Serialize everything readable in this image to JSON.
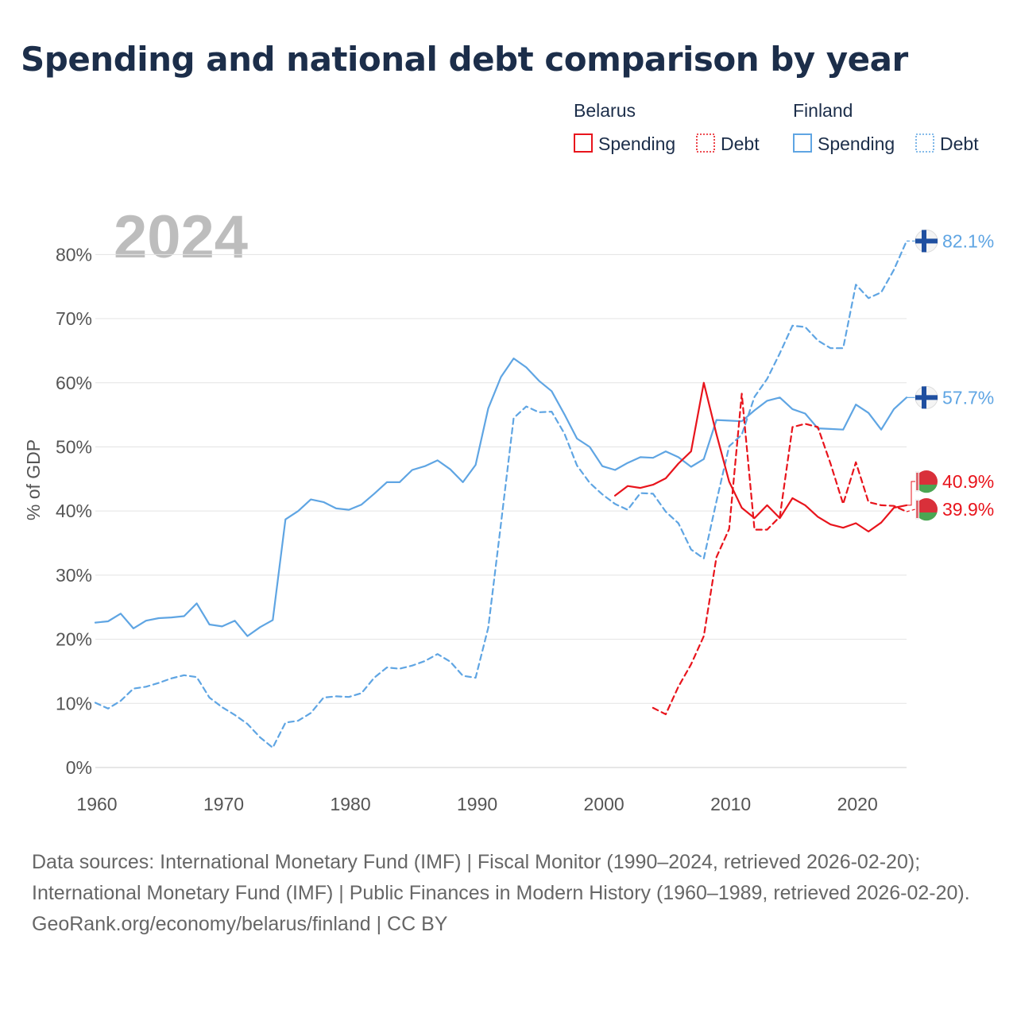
{
  "title": "Spending and national debt comparison by year",
  "chart_data": {
    "type": "line",
    "watermark_year": "2024",
    "ylabel": "% of GDP",
    "ylim": [
      0,
      85
    ],
    "xlim": [
      1960,
      2024
    ],
    "x_ticks": [
      {
        "value": 1960,
        "label": "1960"
      },
      {
        "value": 1970,
        "label": "1970"
      },
      {
        "value": 1980,
        "label": "1980"
      },
      {
        "value": 1990,
        "label": "1990"
      },
      {
        "value": 2000,
        "label": "2000"
      },
      {
        "value": 2010,
        "label": "2010"
      },
      {
        "value": 2020,
        "label": "2020"
      }
    ],
    "y_ticks": [
      {
        "value": 0,
        "label": "0%"
      },
      {
        "value": 10,
        "label": "10%"
      },
      {
        "value": 20,
        "label": "20%"
      },
      {
        "value": 30,
        "label": "30%"
      },
      {
        "value": 40,
        "label": "40%"
      },
      {
        "value": 50,
        "label": "50%"
      },
      {
        "value": 60,
        "label": "60%"
      },
      {
        "value": 70,
        "label": "70%"
      },
      {
        "value": 80,
        "label": "80%"
      }
    ],
    "legend": {
      "groups": [
        {
          "country": "Belarus",
          "items": [
            {
              "label": "Spending",
              "style": "solid"
            },
            {
              "label": "Debt",
              "style": "dotted"
            }
          ]
        },
        {
          "country": "Finland",
          "items": [
            {
              "label": "Spending",
              "style": "solid"
            },
            {
              "label": "Debt",
              "style": "dotted"
            }
          ]
        }
      ],
      "placement": "top-right"
    },
    "series": [
      {
        "name": "Finland Spending",
        "country": "Finland",
        "metric": "Spending",
        "color": "#5fa5e3",
        "dash": "solid",
        "flag": "finland",
        "end_label": "57.7%",
        "x": [
          1960,
          1961,
          1962,
          1963,
          1964,
          1965,
          1966,
          1967,
          1968,
          1969,
          1970,
          1971,
          1972,
          1973,
          1974,
          1975,
          1976,
          1977,
          1978,
          1979,
          1980,
          1981,
          1982,
          1983,
          1984,
          1985,
          1986,
          1987,
          1988,
          1989,
          1990,
          1991,
          1992,
          1993,
          1994,
          1995,
          1996,
          1997,
          1998,
          1999,
          2000,
          2001,
          2002,
          2003,
          2004,
          2005,
          2006,
          2007,
          2008,
          2009,
          2010,
          2011,
          2012,
          2013,
          2014,
          2015,
          2016,
          2017,
          2018,
          2019,
          2020,
          2021,
          2022,
          2023,
          2024
        ],
        "values": [
          22.6,
          22.8,
          24.0,
          21.7,
          22.9,
          23.3,
          23.4,
          23.6,
          25.6,
          22.3,
          22.0,
          22.9,
          20.5,
          21.9,
          23.0,
          38.7,
          40.0,
          41.8,
          41.4,
          40.4,
          40.2,
          41.0,
          42.7,
          44.5,
          44.5,
          46.4,
          47.0,
          47.9,
          46.5,
          44.5,
          47.2,
          56.0,
          60.9,
          63.8,
          62.4,
          60.3,
          58.7,
          55.1,
          51.3,
          50.0,
          47.0,
          46.4,
          47.5,
          48.4,
          48.3,
          49.3,
          48.4,
          46.9,
          48.1,
          54.2,
          54.1,
          54.0,
          55.7,
          57.2,
          57.7,
          55.9,
          55.2,
          52.9,
          52.8,
          52.7,
          56.6,
          55.3,
          52.7,
          55.9,
          57.7
        ]
      },
      {
        "name": "Finland Debt",
        "country": "Finland",
        "metric": "Debt",
        "color": "#5fa5e3",
        "dash": "dashed",
        "flag": "finland",
        "end_label": "82.1%",
        "x": [
          1960,
          1961,
          1962,
          1963,
          1964,
          1965,
          1966,
          1967,
          1968,
          1969,
          1970,
          1971,
          1972,
          1973,
          1974,
          1975,
          1976,
          1977,
          1978,
          1979,
          1980,
          1981,
          1982,
          1983,
          1984,
          1985,
          1986,
          1987,
          1988,
          1989,
          1990,
          1991,
          1992,
          1993,
          1994,
          1995,
          1996,
          1997,
          1998,
          1999,
          2000,
          2001,
          2002,
          2003,
          2004,
          2005,
          2006,
          2007,
          2008,
          2009,
          2010,
          2011,
          2012,
          2013,
          2014,
          2015,
          2016,
          2017,
          2018,
          2019,
          2020,
          2021,
          2022,
          2023,
          2024
        ],
        "values": [
          10.1,
          9.2,
          10.4,
          12.3,
          12.6,
          13.2,
          13.9,
          14.4,
          14.1,
          10.9,
          9.4,
          8.2,
          6.8,
          4.7,
          3.1,
          7.0,
          7.3,
          8.5,
          10.9,
          11.1,
          11.0,
          11.6,
          14.0,
          15.6,
          15.4,
          15.9,
          16.6,
          17.7,
          16.5,
          14.3,
          14.0,
          21.8,
          38.0,
          54.5,
          56.3,
          55.4,
          55.5,
          52.1,
          47.1,
          44.4,
          42.6,
          41.1,
          40.2,
          42.8,
          42.7,
          39.9,
          38.1,
          34.0,
          32.6,
          41.5,
          50.1,
          51.9,
          57.8,
          60.6,
          64.6,
          68.9,
          68.7,
          66.6,
          65.4,
          65.4,
          75.3,
          73.2,
          74.1,
          77.6,
          82.1
        ]
      },
      {
        "name": "Belarus Spending",
        "country": "Belarus",
        "metric": "Spending",
        "color": "#e8141c",
        "dash": "solid",
        "flag": "belarus",
        "end_label": "40.9%",
        "x": [
          2001,
          2002,
          2003,
          2004,
          2005,
          2006,
          2007,
          2008,
          2009,
          2010,
          2011,
          2012,
          2013,
          2014,
          2015,
          2016,
          2017,
          2018,
          2019,
          2020,
          2021,
          2022,
          2023,
          2024
        ],
        "values": [
          42.4,
          43.9,
          43.6,
          44.1,
          45.1,
          47.4,
          49.3,
          60.0,
          52.0,
          44.6,
          40.5,
          38.9,
          40.9,
          38.9,
          42.0,
          40.9,
          39.1,
          37.9,
          37.4,
          38.1,
          36.8,
          38.2,
          40.5,
          40.9
        ]
      },
      {
        "name": "Belarus Debt",
        "country": "Belarus",
        "metric": "Debt",
        "color": "#e8141c",
        "dash": "dashed",
        "flag": "belarus",
        "end_label": "39.9%",
        "x": [
          2004,
          2005,
          2006,
          2007,
          2008,
          2009,
          2010,
          2011,
          2012,
          2013,
          2014,
          2015,
          2016,
          2017,
          2018,
          2019,
          2020,
          2021,
          2022,
          2023,
          2024
        ],
        "values": [
          9.3,
          8.3,
          12.6,
          16.1,
          20.5,
          32.8,
          37.2,
          58.3,
          37.1,
          37.1,
          39.1,
          53.1,
          53.6,
          53.1,
          47.4,
          41.1,
          47.6,
          41.4,
          40.9,
          40.8,
          39.9
        ]
      }
    ]
  },
  "footer": {
    "sources": "Data sources: International Monetary Fund (IMF) | Fiscal Monitor (1990–2024, retrieved 2026-02-20); International Monetary Fund (IMF) | Public Finances in Modern History (1960–1989, retrieved 2026-02-20).",
    "attribution": "GeoRank.org/economy/belarus/finland | CC BY"
  }
}
